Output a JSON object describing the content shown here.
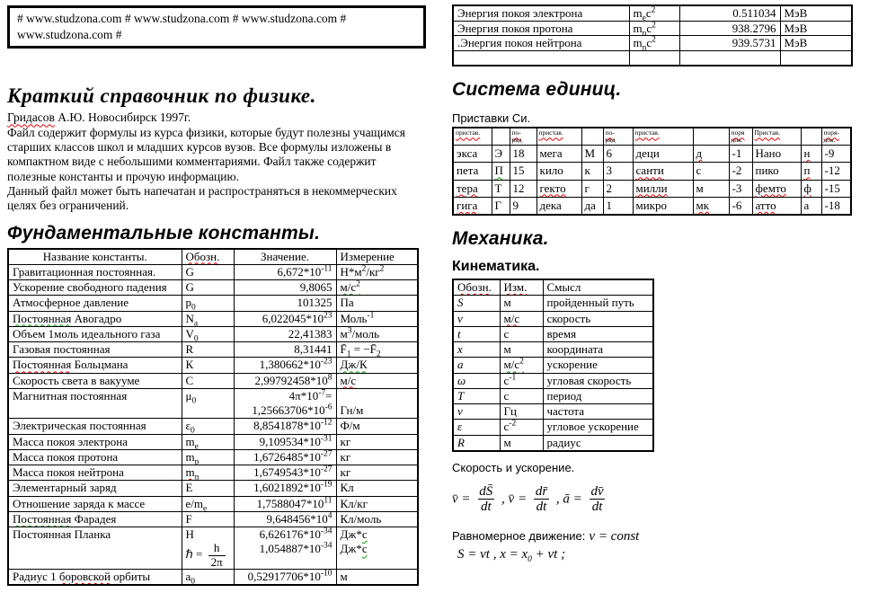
{
  "watermark": {
    "text": "# www.studzona.com # www.studzona.com # www.studzona.com # www.studzona.com #"
  },
  "intro": {
    "title": "Краткий справочник по физике.",
    "author": "~r{Гридасов} А.Ю. Новосибирск 1997г.",
    "p1": "Файл содержит формулы из курса физики, которые будут полезны учащимся старших классов школ и младших курсов вузов. Все формулы изложены в компактном виде с небольшими комментариями. Файл также содержит полезные константы и прочую информацию.",
    "p2": "Данный файл может быть напечатан и распространяться в некоммерческих целях без ограничений."
  },
  "constants_section": {
    "heading": "Фундаментальные константы.",
    "table": {
      "widths": [
        193,
        58,
        114,
        91
      ],
      "align": [
        "l",
        "l",
        "r",
        "l"
      ],
      "header_align": [
        "c",
        "l",
        "c",
        "l"
      ],
      "header": [
        "Название константы.",
        "~r{Обозн.}",
        "Значение.",
        "Измерение"
      ],
      "rows": [
        [
          "Гравитационная постоянная.",
          "G",
          "6,672*10^{-11}",
          "Н*м^{2}/кг^{2}"
        ],
        [
          "Ускорение свободного падения",
          "G",
          "9,8065",
          "~g{м/с^{2}}"
        ],
        [
          "Атмосферное давление",
          "p_{0}",
          "101325",
          "Па"
        ],
        [
          "~g{Постоянная} Авогадро",
          "N_{a}",
          "6,022045*10^{23}",
          "Моль^{-1}"
        ],
        [
          "Объем 1моль идеального газа",
          "V_{0}",
          "22,41383",
          "м^{3}/моль"
        ],
        [
          "Газовая постоянная",
          "R",
          "8,31441",
          "F̄_{1} = −F̄_{2}"
        ],
        [
          "~r{Постоянная} Больцмана",
          "К",
          "1,380662*10^{-23}",
          "~g{Дж/К}"
        ],
        [
          "Скорость света в вакууме",
          "С",
          "2,99792458*10^{8}",
          "~r{м/с}"
        ],
        [
          "Магнитная постоянная",
          "μ_{0}",
          [
            "4π*10^{-7}=",
            "1,25663706*10^{-6}"
          ],
          [
            "",
            "Гн/м"
          ]
        ],
        [
          "Электрическая постоянная",
          "ε_{0}",
          "8,8541878*10^{-12}",
          "Ф/м"
        ],
        [
          "Масса покоя электрона",
          "m_{e}",
          "9,109534*10^{-31}",
          "кг"
        ],
        [
          "Масса покоя протона",
          "m_{p}",
          "1,6726485*10^{-27}",
          "кг"
        ],
        [
          "Масса покоя нейтрона",
          "~r{m_{n}}",
          "1,6749543*10^{-27}",
          "кг"
        ],
        [
          "Элементарный заряд",
          "E",
          "1,6021892*10^{-19}",
          "Кл"
        ],
        [
          "Отношение заряда к массе",
          "e/m_{e}",
          "1,7588047*10^{11}",
          "Кл/кг"
        ],
        [
          "~g{Постоянная} Фарадея",
          "F",
          "9,648456*10^{4}",
          "Кл/моль"
        ],
        [
          "Постоянная Планка",
          [
            "H",
            "ℏ = @{h|2π}"
          ],
          [
            "6,626176*10^{-34}",
            "1,054887*10^{-34}"
          ],
          [
            "Дж*~g{с}",
            "Дж*~g{с}"
          ]
        ],
        [
          "Радиус 1 ~r{боровской} орбиты",
          "a_{0}",
          "0,52917706*10^{-10}",
          "м"
        ]
      ]
    }
  },
  "energy_table": {
    "widths": [
      196,
      56,
      112,
      80
    ],
    "align": [
      "l",
      "l",
      "r",
      "l"
    ],
    "rows": [
      [
        "Энергия покоя электрона",
        "m_{e}c^{2}",
        "0.511034",
        "МэВ"
      ],
      [
        "Энергия покоя протона",
        "m_{p}c^{2}",
        "938.2796",
        "МэВ"
      ],
      [
        ".Энергия покоя нейтрона",
        "m_{n}c^{2}",
        "939.5731",
        "МэВ"
      ],
      [
        "",
        "",
        "",
        ""
      ]
    ]
  },
  "units_section": {
    "heading": "Система единиц.",
    "prefixes_label": "Приставки Си.",
    "table": {
      "widths": [
        43,
        20,
        30,
        50,
        24,
        33,
        67,
        40,
        26,
        54,
        23,
        33
      ],
      "align": [
        "l",
        "l",
        "l",
        "l",
        "l",
        "l",
        "l",
        "l",
        "l",
        "l",
        "l",
        "l"
      ],
      "header_align": [
        "l",
        "l",
        "l",
        "l",
        "l",
        "l",
        "l",
        "l",
        "l",
        "l",
        "l",
        "l"
      ],
      "header": [
        "~r{пристав.}",
        "",
        [
          "~r{по-}",
          "~r{ряд}"
        ],
        "~r{пристав.}",
        "",
        [
          "~r{по-}",
          "~r{ряд}"
        ],
        "~r{пристав.}",
        "",
        [
          "~r{поря}",
          "~r{док.}"
        ],
        "~r{Пристав.}",
        "",
        [
          "~r{поря-}",
          "~r{док.}"
        ]
      ],
      "rows": [
        [
          "экса",
          "Э",
          "18",
          "мега",
          "М",
          "6",
          "деци",
          "~r{д}",
          "-1",
          "Нано",
          "~r{н}",
          "-9"
        ],
        [
          "пета",
          "~g{П}",
          "15",
          "кило",
          "к",
          "3",
          "~r{санти}",
          "с",
          "-2",
          "пико",
          "~r{п}",
          "-12"
        ],
        [
          "~r{тера}",
          "Т",
          "12",
          "~r{гекто}",
          "г",
          "2",
          "~r{милли}",
          "м",
          "-3",
          "~r{фемто}",
          "~r{ф}",
          "-15"
        ],
        [
          "~r{гига}",
          "Г",
          "9",
          "дека",
          "да",
          "1",
          "микро",
          "~r{мк}",
          "-6",
          "~r{атто}",
          "а",
          "-18"
        ]
      ]
    }
  },
  "mechanics_section": {
    "heading": "Механика.",
    "kinematics_label": "Кинематика.",
    "table": {
      "widths": [
        52,
        48,
        123
      ],
      "align": [
        "l",
        "l",
        "l"
      ],
      "header_align": [
        "l",
        "l",
        "l"
      ],
      "col_class": [
        "sym",
        "",
        ""
      ],
      "header": [
        "~r{Обозн.}",
        "~r{Изм.}",
        "Смысл"
      ],
      "rows": [
        [
          "S",
          "м",
          "пройденный путь"
        ],
        [
          "v",
          "~r{м/с}",
          "скорость"
        ],
        [
          "t",
          "с",
          "время"
        ],
        [
          "x",
          "м",
          "координата"
        ],
        [
          "a",
          "~g{м/с^{2}}",
          "ускорение"
        ],
        [
          "ω",
          "с^{-1}",
          "угловая скорость"
        ],
        [
          "T",
          "с",
          "период"
        ],
        [
          "ν",
          "Гц",
          "частота"
        ],
        [
          "ε",
          "с^{-2}",
          "угловое ускорение"
        ],
        [
          "R",
          "м",
          "радиус"
        ]
      ]
    },
    "velocity_label": "Скорость и ускорение.",
    "velocity_formulas": "v̄ = @{dS̄|dt} ,    v̄ = @{dr̄|dt} ,   ā = @{dv̄|dt}",
    "uniform_label": "Равномерное движение:",
    "uniform_const": "v = const",
    "uniform_formulas": "S = vt ,   x = x_{0} + vt ;"
  }
}
